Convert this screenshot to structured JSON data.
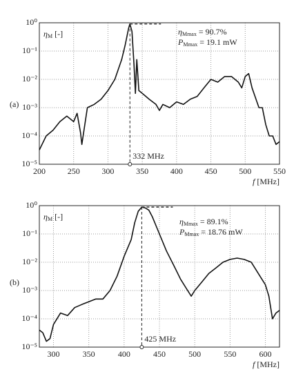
{
  "chart_data": [
    {
      "type": "line",
      "panel_label": "(a)",
      "ylabel": {
        "symbol": "η",
        "subscript": "M",
        "text": " [-]"
      },
      "xlabel": {
        "symbol": "f",
        "text": " [MHz]"
      },
      "log_y": true,
      "grid": true,
      "color": "#111111",
      "xlim": [
        200,
        550
      ],
      "xticks": [
        200,
        250,
        300,
        350,
        400,
        450,
        500,
        550
      ],
      "ylim": [
        1e-05,
        1
      ],
      "yticks": [
        {
          "value": 1,
          "label": "10⁰"
        },
        {
          "value": 0.1,
          "label": "10⁻¹"
        },
        {
          "value": 0.01,
          "label": "10⁻²"
        },
        {
          "value": 0.001,
          "label": "10⁻³"
        },
        {
          "value": 0.0001,
          "label": "10⁻⁴"
        },
        {
          "value": 1e-05,
          "label": "10⁻⁵"
        }
      ],
      "x": [
        200,
        210,
        220,
        230,
        240,
        250,
        255,
        260,
        262,
        270,
        280,
        290,
        300,
        310,
        320,
        325,
        330,
        332,
        335,
        338,
        340,
        342,
        345,
        350,
        360,
        370,
        375,
        380,
        390,
        400,
        410,
        420,
        430,
        440,
        450,
        460,
        470,
        480,
        490,
        495,
        500,
        505,
        510,
        520,
        525,
        530,
        535,
        540,
        545,
        550
      ],
      "series": [
        {
          "values": [
            3.2e-05,
            0.0001,
            0.00016,
            0.00032,
            0.0005,
            0.00032,
            0.00063,
            0.00013,
            5e-05,
            0.001,
            0.0013,
            0.002,
            0.004,
            0.01,
            0.05,
            0.16,
            0.63,
            0.907,
            0.5,
            0.032,
            0.0032,
            0.05,
            0.004,
            0.0032,
            0.002,
            0.0013,
            0.0008,
            0.0013,
            0.001,
            0.0016,
            0.0013,
            0.002,
            0.0025,
            0.005,
            0.01,
            0.008,
            0.0126,
            0.0126,
            0.008,
            0.005,
            0.0126,
            0.016,
            0.005,
            0.001,
            0.001,
            0.00025,
            0.0001,
            0.0001,
            5e-05,
            6.3e-05
          ]
        }
      ],
      "peak_x": 332,
      "peak_y": 0.907,
      "peak_label": "332 MHz",
      "annotations": [
        {
          "symbol": "η",
          "subscript": "Mmax",
          "text": " = 90.7%"
        },
        {
          "symbol": "P",
          "subscript": "Mmax",
          "text": " = 19.1 mW"
        }
      ]
    },
    {
      "type": "line",
      "panel_label": "(b)",
      "ylabel": {
        "symbol": "η",
        "subscript": "M",
        "text": " [-]"
      },
      "xlabel": {
        "symbol": "f",
        "text": " [MHz]"
      },
      "log_y": true,
      "grid": true,
      "color": "#111111",
      "xlim": [
        280,
        620
      ],
      "xticks": [
        300,
        350,
        400,
        450,
        500,
        550,
        600
      ],
      "ylim": [
        1e-05,
        1
      ],
      "yticks": [
        {
          "value": 1,
          "label": "10⁰"
        },
        {
          "value": 0.1,
          "label": "10⁻¹"
        },
        {
          "value": 0.01,
          "label": "10⁻²"
        },
        {
          "value": 0.001,
          "label": "10⁻³"
        },
        {
          "value": 0.0001,
          "label": "10⁻⁴"
        },
        {
          "value": 1e-05,
          "label": "10⁻⁵"
        }
      ],
      "x": [
        280,
        285,
        290,
        295,
        300,
        310,
        320,
        330,
        340,
        350,
        360,
        370,
        380,
        390,
        400,
        410,
        415,
        420,
        425,
        430,
        435,
        440,
        450,
        460,
        470,
        480,
        490,
        495,
        500,
        510,
        520,
        530,
        540,
        550,
        560,
        570,
        580,
        590,
        600,
        605,
        610,
        615,
        620
      ],
      "series": [
        {
          "values": [
            4e-05,
            3.2e-05,
            1.6e-05,
            2e-05,
            6.3e-05,
            0.00016,
            0.00013,
            0.00025,
            0.00032,
            0.0004,
            0.0005,
            0.0005,
            0.001,
            0.0032,
            0.016,
            0.063,
            0.25,
            0.63,
            0.891,
            0.83,
            0.7,
            0.4,
            0.1,
            0.025,
            0.008,
            0.0025,
            0.001,
            0.00063,
            0.001,
            0.002,
            0.004,
            0.0063,
            0.01,
            0.0126,
            0.014,
            0.0126,
            0.01,
            0.004,
            0.0016,
            0.00063,
            0.0001,
            0.00016,
            0.0002
          ]
        }
      ],
      "peak_x": 425,
      "peak_y": 0.891,
      "peak_label": "425 MHz",
      "annotations": [
        {
          "symbol": "η",
          "subscript": "Mmax",
          "text": " = 89.1%"
        },
        {
          "symbol": "P",
          "subscript": "Mmax",
          "text": " = 18.76 mW"
        }
      ]
    }
  ]
}
